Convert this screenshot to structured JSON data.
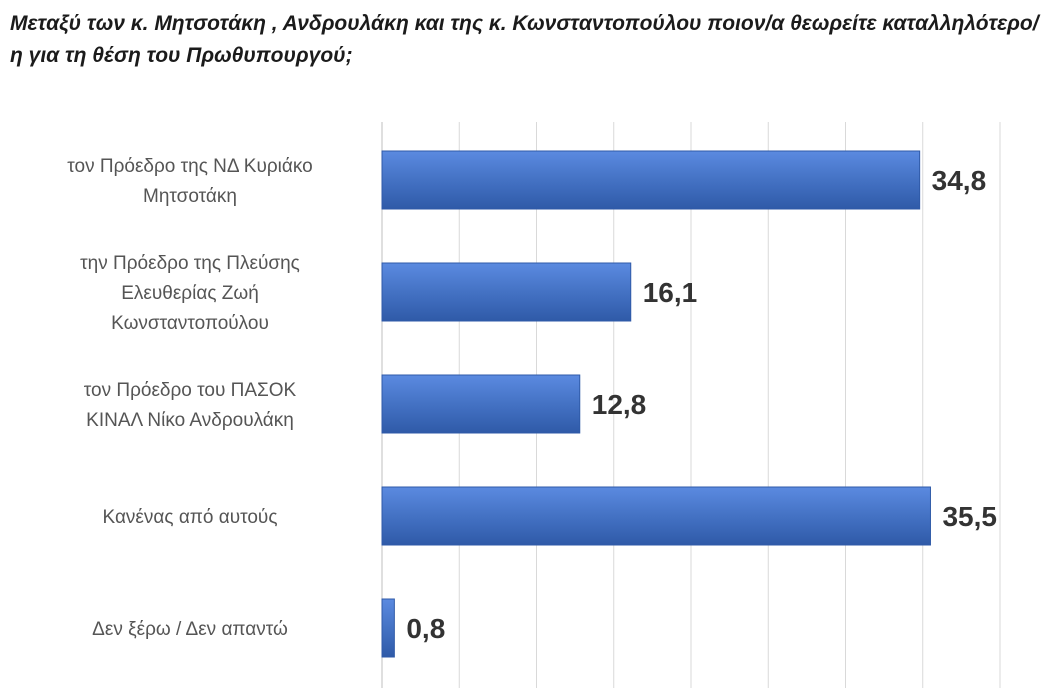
{
  "chart_data": {
    "type": "bar",
    "orientation": "horizontal",
    "title": "Μεταξύ των κ. Μητσοτάκη , Ανδρουλάκη και της κ. Κωνσταντοπούλου ποιον/α θεωρείτε καταλληλότερο/η για τη θέση του Πρωθυπουργού;",
    "categories": [
      [
        "τον Πρόεδρο της ΝΔ Κυριάκο",
        "Μητσοτάκη"
      ],
      [
        "την Πρόεδρο της Πλεύσης",
        "Ελευθερίας Ζωή",
        "Κωνσταντοπούλου"
      ],
      [
        "τον Πρόεδρο του ΠΑΣΟΚ",
        "ΚΙΝΑΛ Νίκο Ανδρουλάκη"
      ],
      [
        "Κανένας από αυτούς"
      ],
      [
        "Δεν ξέρω / Δεν απαντώ"
      ]
    ],
    "values": [
      34.8,
      16.1,
      12.8,
      35.5,
      0.8
    ],
    "value_labels": [
      "34,8",
      "16,1",
      "12,8",
      "35,5",
      "0,8"
    ],
    "xlim": [
      0,
      40
    ],
    "grid": true,
    "legend": "none",
    "bar_color": "#4472c4",
    "bar_color_light": "#5b8ae0",
    "bar_color_dark": "#2f5aa8"
  }
}
